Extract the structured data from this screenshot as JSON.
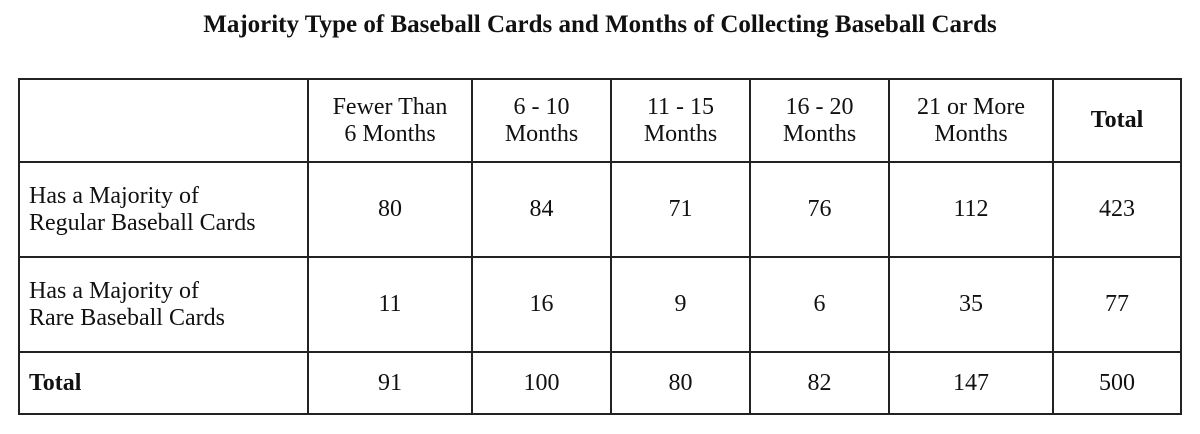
{
  "title": "Majority Type of Baseball Cards and Months of Collecting Baseball Cards",
  "columns": [
    {
      "line1": "Fewer Than",
      "line2": "6 Months"
    },
    {
      "line1": "6 - 10",
      "line2": "Months"
    },
    {
      "line1": "11 - 15",
      "line2": "Months"
    },
    {
      "line1": "16 - 20",
      "line2": "Months"
    },
    {
      "line1": "21 or More",
      "line2": "Months"
    },
    {
      "line1": "Total",
      "line2": ""
    }
  ],
  "rows": [
    {
      "label1": "Has a Majority of",
      "label2": "Regular Baseball Cards",
      "values": [
        "80",
        "84",
        "71",
        "76",
        "112",
        "423"
      ]
    },
    {
      "label1": "Has a Majority of",
      "label2": "Rare Baseball Cards",
      "values": [
        "11",
        "16",
        "9",
        "6",
        "35",
        "77"
      ]
    },
    {
      "label1": "Total",
      "label2": "",
      "values": [
        "91",
        "100",
        "80",
        "82",
        "147",
        "500"
      ]
    }
  ]
}
